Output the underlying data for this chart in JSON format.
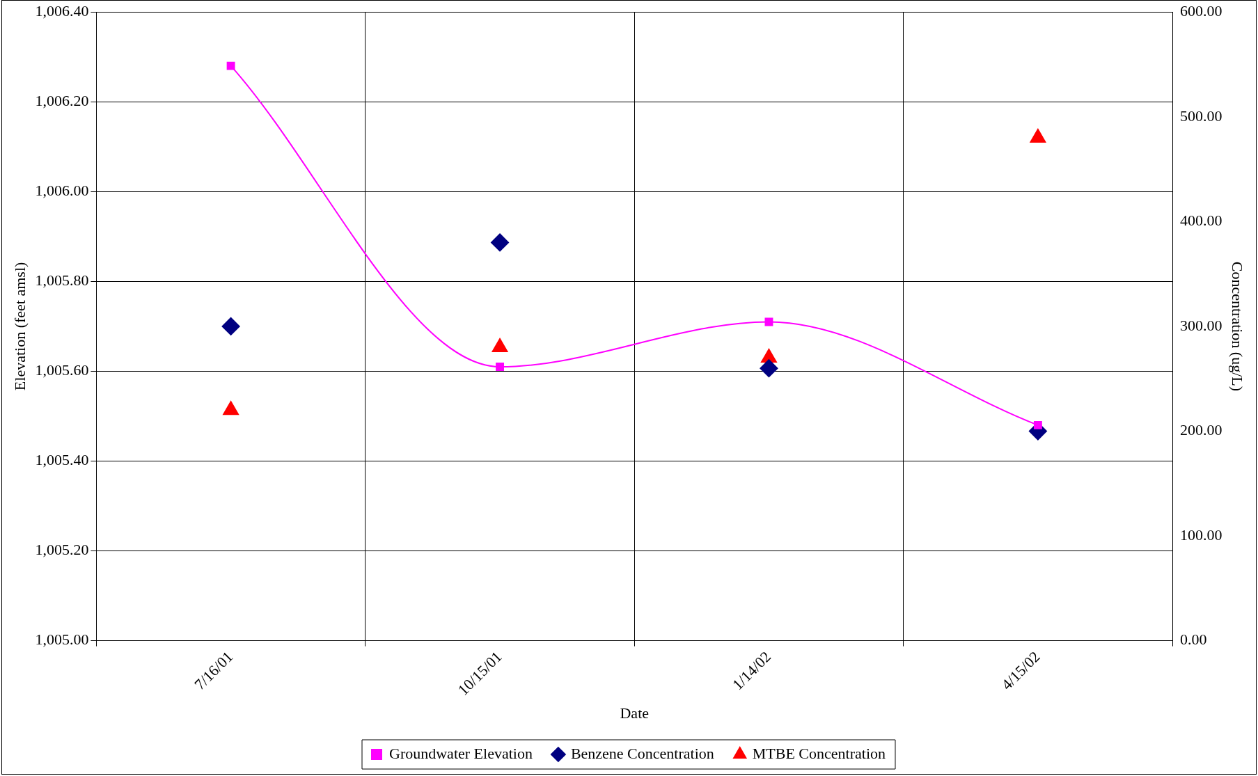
{
  "chart_data": {
    "type": "line",
    "xlabel": "Date",
    "ylabel": "Elevation (feet amsl)",
    "y2label": "Concentration (ug/L)",
    "categories": [
      "7/16/01",
      "10/15/01",
      "1/14/02",
      "4/15/02"
    ],
    "series": [
      {
        "name": "Groundwater Elevation",
        "color": "#ff00ff",
        "marker": "square",
        "values": [
          1006.28,
          1005.61,
          1005.71,
          1005.48
        ]
      },
      {
        "name": "Benzene Concentration",
        "type": "scatter",
        "color": "#000080",
        "marker": "diamond",
        "axis": "y2",
        "values": [
          300,
          380,
          260,
          200
        ]
      },
      {
        "name": "MTBE Concentration",
        "type": "scatter",
        "color": "#ff0000",
        "marker": "triangle",
        "axis": "y2",
        "values": [
          220,
          280,
          270,
          480
        ]
      }
    ],
    "ylim": [
      1005.0,
      1006.4
    ],
    "yticks": [
      {
        "value": 1005.0,
        "label": "1,005.00"
      },
      {
        "value": 1005.2,
        "label": "1,005.20"
      },
      {
        "value": 1005.4,
        "label": "1,005.40"
      },
      {
        "value": 1005.6,
        "label": "1,005.60"
      },
      {
        "value": 1005.8,
        "label": "1,005.80"
      },
      {
        "value": 1006.0,
        "label": "1,006.00"
      },
      {
        "value": 1006.2,
        "label": "1,006.20"
      },
      {
        "value": 1006.4,
        "label": "1,006.40"
      }
    ],
    "y2lim": [
      0,
      600
    ],
    "y2ticks": [
      {
        "value": 0,
        "label": "0.00"
      },
      {
        "value": 100,
        "label": "100.00"
      },
      {
        "value": 200,
        "label": "200.00"
      },
      {
        "value": 300,
        "label": "300.00"
      },
      {
        "value": 400,
        "label": "400.00"
      },
      {
        "value": 500,
        "label": "500.00"
      },
      {
        "value": 600,
        "label": "600.00"
      }
    ],
    "grid": true,
    "legend": "bottom"
  }
}
